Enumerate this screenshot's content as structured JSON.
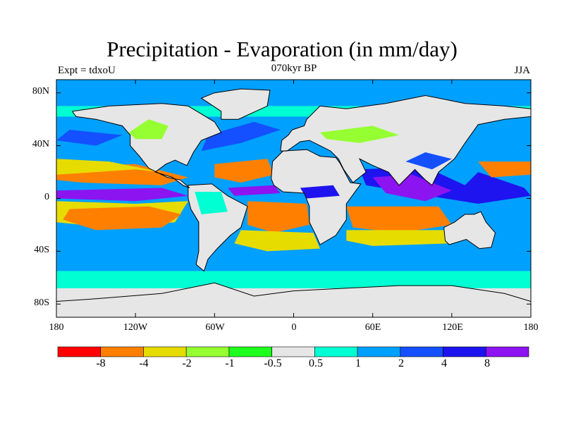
{
  "header": {
    "title": "Precipitation - Evaporation (in mm/day)",
    "expt": "Expt = tdxoU",
    "period": "070kyr BP",
    "season": "JJA"
  },
  "map": {
    "projection": "cylindrical-equidistant",
    "lat_labels": [
      "80N",
      "40N",
      "0",
      "40S",
      "80S"
    ],
    "lon_labels": [
      "180",
      "120W",
      "60W",
      "0",
      "60E",
      "120E",
      "180"
    ],
    "ocean_default_color": "#00a0ff"
  },
  "colorbar": {
    "labels": [
      "-8",
      "-4",
      "-2",
      "-1",
      "-0.5",
      "0.5",
      "1",
      "2",
      "4",
      "8"
    ],
    "colors": [
      "#ff0000",
      "#ff8000",
      "#e6dc00",
      "#96ff32",
      "#1eff1e",
      "#e6e6e6",
      "#00ffd2",
      "#00a0ff",
      "#1450ff",
      "#1e14f0",
      "#8c14f0"
    ]
  }
}
